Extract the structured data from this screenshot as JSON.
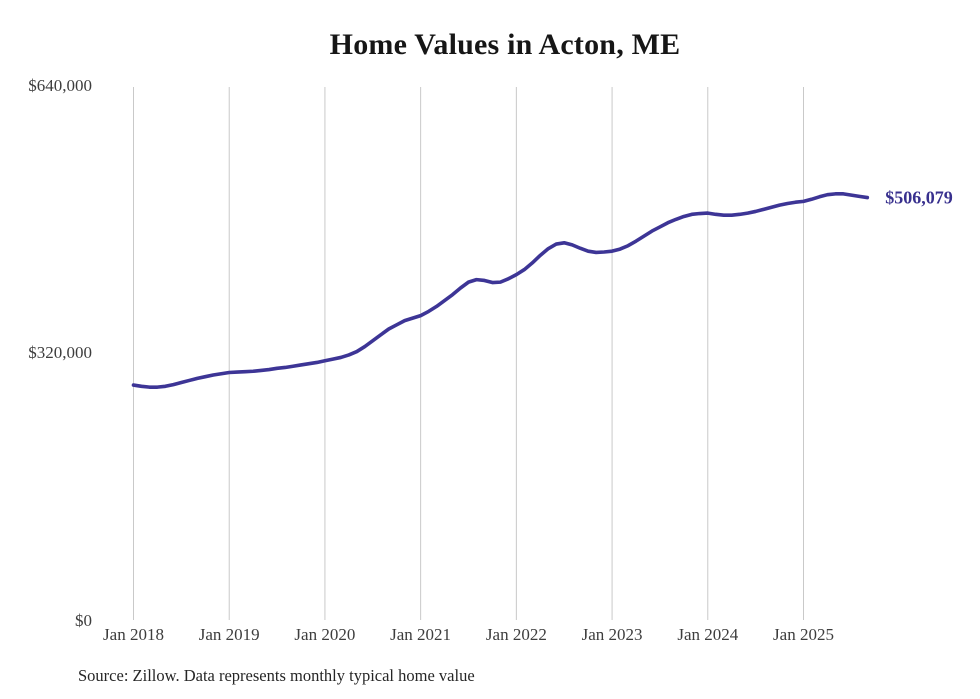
{
  "header": {
    "title": "Home Values in Acton, ME"
  },
  "footer": {
    "source_note": "Source: Zillow. Data represents monthly typical home value"
  },
  "colors": {
    "line": "#3d3596",
    "end_label": "#38308e",
    "grid": "#c9c9c9",
    "title_text": "#161616",
    "axis_text": "#3d3d3d",
    "source_text": "#262626",
    "background": "#ffffff"
  },
  "chart_data": {
    "type": "line",
    "title": "Home Values in Acton, ME",
    "xlabel": "",
    "ylabel": "",
    "unit": "USD",
    "frequency": "monthly",
    "start_month": "Jan 2018",
    "end_month": "Sep 2025",
    "ylim": [
      0,
      640000
    ],
    "grid": "vertical-only",
    "legend_position": "none",
    "y_ticks": [
      {
        "label": "$640,000",
        "value": 640000
      },
      {
        "label": "$320,000",
        "value": 320000
      },
      {
        "label": "$0",
        "value": 0
      }
    ],
    "x_ticks": [
      {
        "label": "Jan 2018",
        "month_index": 0
      },
      {
        "label": "Jan 2019",
        "month_index": 12
      },
      {
        "label": "Jan 2020",
        "month_index": 24
      },
      {
        "label": "Jan 2021",
        "month_index": 36
      },
      {
        "label": "Jan 2022",
        "month_index": 48
      },
      {
        "label": "Jan 2023",
        "month_index": 60
      },
      {
        "label": "Jan 2024",
        "month_index": 72
      },
      {
        "label": "Jan 2025",
        "month_index": 84
      }
    ],
    "series": [
      {
        "name": "Typical home value",
        "values": [
          282000,
          280500,
          279500,
          279500,
          280500,
          282500,
          285000,
          287500,
          290000,
          292000,
          294000,
          295500,
          297000,
          297500,
          298000,
          298500,
          299500,
          300500,
          302000,
          303000,
          304500,
          306000,
          307500,
          309000,
          311000,
          313000,
          315000,
          318000,
          322000,
          328000,
          335000,
          342000,
          349000,
          354000,
          359000,
          362000,
          365000,
          370000,
          376000,
          383000,
          390000,
          398000,
          405000,
          408000,
          407000,
          404500,
          405000,
          409000,
          414000,
          420000,
          428000,
          437000,
          445000,
          450500,
          452000,
          449500,
          445500,
          442000,
          440500,
          441000,
          442000,
          444500,
          448500,
          454000,
          460000,
          466000,
          471000,
          476000,
          480000,
          483500,
          486000,
          487000,
          487500,
          486000,
          485000,
          485000,
          486000,
          487500,
          489500,
          492000,
          494500,
          497000,
          499000,
          500500,
          501500,
          504000,
          507000,
          509500,
          510500,
          510500,
          509000,
          507500,
          506079
        ]
      }
    ],
    "end_value": 506079,
    "end_value_label": "$506,079"
  }
}
